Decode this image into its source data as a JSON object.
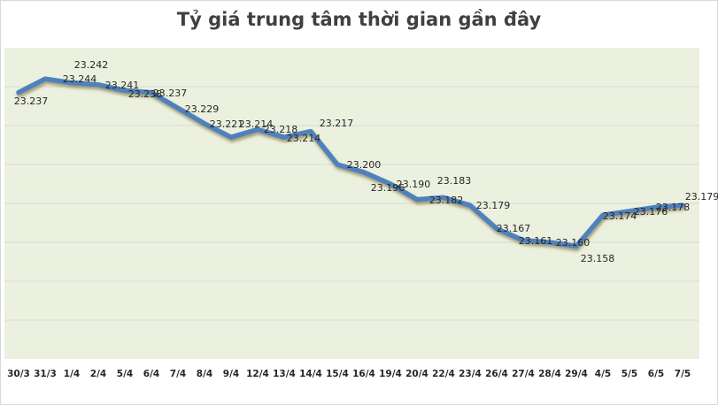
{
  "chart_data": {
    "type": "line",
    "title": "Tỷ giá trung tâm thời gian gần đây",
    "xlabel": "",
    "ylabel": "",
    "categories": [
      "30/3",
      "31/3",
      "1/4",
      "2/4",
      "5/4",
      "6/4",
      "7/4",
      "8/4",
      "9/4",
      "12/4",
      "13/4",
      "14/4",
      "15/4",
      "16/4",
      "19/4",
      "20/4",
      "22/4",
      "23/4",
      "26/4",
      "27/4",
      "28/4",
      "29/4",
      "4/5",
      "5/5",
      "6/5",
      "7/5"
    ],
    "values": [
      23.237,
      23.244,
      23.242,
      23.241,
      23.238,
      23.237,
      23.229,
      23.221,
      23.214,
      23.218,
      23.214,
      23.217,
      23.2,
      23.196,
      23.19,
      23.182,
      23.183,
      23.179,
      23.167,
      23.161,
      23.16,
      23.158,
      23.174,
      23.176,
      23.178,
      23.179
    ],
    "labels": [
      "23.237",
      "23.244",
      "23.242",
      "23.241",
      "23.238",
      "23.237",
      "23.229",
      "23.221",
      "23.214",
      "23.218",
      "23.214",
      "23.217",
      "23.200",
      "23.196",
      "23.190",
      "23.182",
      "23.183",
      "23.179",
      "23.167",
      "23.161",
      "23.160",
      "23.158",
      "23.174",
      "23.176",
      "23.178",
      "23.179"
    ],
    "ylim": [
      23.1,
      23.26
    ],
    "ygrid_step": 0.02,
    "grid": true,
    "y_tick_labels_shown": false,
    "legend": "none",
    "colors": {
      "line": "#4f81bd",
      "plot_bg": "#ebf1de",
      "grid": "#d9d9d9"
    }
  }
}
